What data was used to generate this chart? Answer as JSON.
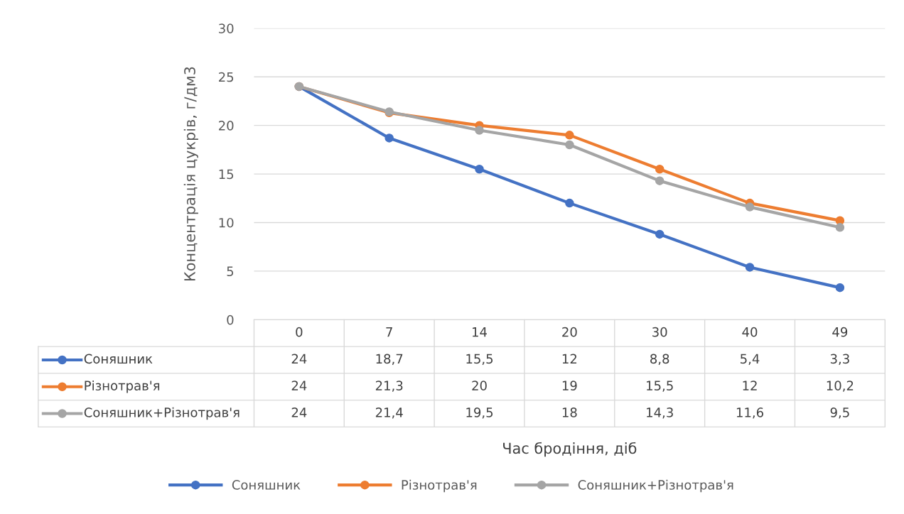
{
  "chart_data": {
    "type": "line",
    "annotations": [
      "Час бродіння, діб"
    ],
    "ylabel": "Концентрація цукрів, г/дм3",
    "categories": [
      "0",
      "7",
      "14",
      "20",
      "30",
      "40",
      "49"
    ],
    "series": [
      {
        "name": "Соняшник",
        "color": "#4472c4",
        "values": [
          24,
          18.7,
          15.5,
          12,
          8.8,
          5.4,
          3.3
        ],
        "value_labels": [
          "24",
          "18,7",
          "15,5",
          "12",
          "8,8",
          "5,4",
          "3,3"
        ]
      },
      {
        "name": "Різнотрав'я",
        "color": "#ed7d31",
        "values": [
          24,
          21.3,
          20,
          19,
          15.5,
          12,
          10.2
        ],
        "value_labels": [
          "24",
          "21,3",
          "20",
          "19",
          "15,5",
          "12",
          "10,2"
        ]
      },
      {
        "name": "Соняшник+Різнотрав'я",
        "color": "#a5a5a5",
        "values": [
          24,
          21.4,
          19.5,
          18,
          14.3,
          11.6,
          9.5
        ],
        "value_labels": [
          "24",
          "21,4",
          "19,5",
          "18",
          "14,3",
          "11,6",
          "9,5"
        ]
      }
    ],
    "ylim": [
      0,
      30
    ],
    "yticks": [
      0,
      5,
      10,
      15,
      20,
      25,
      30
    ],
    "grid": "y",
    "legend": "bottom",
    "marker": "circle",
    "line_style": "solid"
  }
}
